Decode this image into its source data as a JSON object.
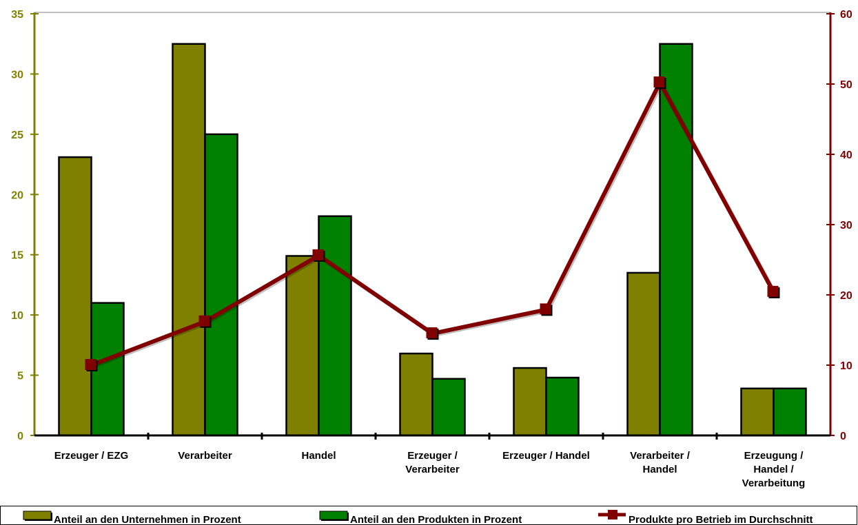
{
  "chart_data": {
    "type": "bar",
    "categories": [
      [
        "Erzeuger / EZG"
      ],
      [
        "Verarbeiter"
      ],
      [
        "Handel"
      ],
      [
        "Erzeuger /",
        "Verarbeiter"
      ],
      [
        "Erzeuger / Handel"
      ],
      [
        "Verarbeiter /",
        "Handel"
      ],
      [
        "Erzeugung /",
        "Handel /",
        "Verarbeitung"
      ]
    ],
    "series": [
      {
        "name": "Anteil an den Unternehmen in Prozent",
        "type": "bar",
        "axis": "left",
        "color": "#808000",
        "values": [
          23.1,
          32.5,
          14.9,
          6.8,
          5.6,
          13.5,
          3.9
        ]
      },
      {
        "name": "Anteil an den Produkten in Prozent",
        "type": "bar",
        "axis": "left",
        "color": "#008000",
        "values": [
          11.0,
          25.0,
          18.2,
          4.7,
          4.8,
          32.5,
          3.9
        ]
      },
      {
        "name": "Produkte pro Betrieb im Durchschnitt",
        "type": "line",
        "axis": "right",
        "color": "#800000",
        "values": [
          10.0,
          16.2,
          25.6,
          14.5,
          17.9,
          50.2,
          20.4
        ]
      }
    ],
    "y_left": {
      "min": 0,
      "max": 35,
      "ticks": [
        "0",
        "5",
        "10",
        "15",
        "20",
        "25",
        "30",
        "35"
      ],
      "color": "#808000"
    },
    "y_right": {
      "min": 0,
      "max": 60,
      "ticks": [
        "0",
        "10",
        "20",
        "30",
        "40",
        "50",
        "60"
      ],
      "color": "#800000"
    },
    "grid": false,
    "legend_position": "bottom"
  }
}
